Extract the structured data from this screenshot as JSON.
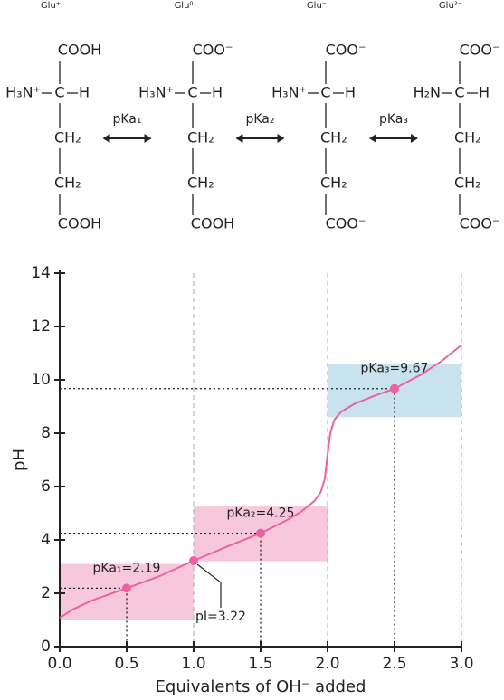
{
  "structures": [
    {
      "name": "Glu⁺",
      "top": "COOH",
      "amino": "H₃N⁺",
      "center": "C",
      "right": "H",
      "chain": [
        "CH₂",
        "CH₂"
      ],
      "bottom": "COOH"
    },
    {
      "name": "Glu⁰",
      "top": "COO⁻",
      "amino": "H₃N⁺",
      "center": "C",
      "right": "H",
      "chain": [
        "CH₂",
        "CH₂"
      ],
      "bottom": "COOH"
    },
    {
      "name": "Glu⁻",
      "top": "COO⁻",
      "amino": "H₃N⁺",
      "center": "C",
      "right": "H",
      "chain": [
        "CH₂",
        "CH₂"
      ],
      "bottom": "COO⁻"
    },
    {
      "name": "Glu²⁻",
      "top": "COO⁻",
      "amino": "H₂N",
      "center": "C",
      "right": "H",
      "chain": [
        "CH₂",
        "CH₂"
      ],
      "bottom": "COO⁻"
    }
  ],
  "equilibria": [
    "pKa₁",
    "pKa₂",
    "pKa₃"
  ],
  "chart_data": {
    "type": "line",
    "xlabel": "Equivalents of OH⁻ added",
    "ylabel": "pH",
    "xlim": [
      0,
      3
    ],
    "ylim": [
      0,
      14
    ],
    "xticks": [
      {
        "value": 0,
        "label": "0.0"
      },
      {
        "value": 0.5,
        "label": "0.5"
      },
      {
        "value": 1,
        "label": "1.0"
      },
      {
        "value": 1.5,
        "label": "1.5"
      },
      {
        "value": 2,
        "label": "2.0"
      },
      {
        "value": 2.5,
        "label": "2.5"
      },
      {
        "value": 3,
        "label": "3.0"
      }
    ],
    "yticks": [
      0,
      2,
      4,
      6,
      8,
      10,
      12,
      14
    ],
    "vgrid": [
      1,
      2,
      3
    ],
    "bands": [
      {
        "x": [
          0,
          1
        ],
        "y": [
          1.0,
          3.1
        ],
        "color": "#f7c8dc"
      },
      {
        "x": [
          1,
          2
        ],
        "y": [
          3.2,
          5.25
        ],
        "color": "#f7c8dc"
      },
      {
        "x": [
          2,
          3
        ],
        "y": [
          8.6,
          10.6
        ],
        "color": "#c8e3ee"
      }
    ],
    "series": [
      {
        "color": "#e9649e",
        "x": [
          0,
          0.1,
          0.25,
          0.5,
          0.75,
          1.0,
          1.25,
          1.5,
          1.7,
          1.8,
          1.9,
          1.95,
          1.98,
          2.0,
          2.02,
          2.05,
          2.1,
          2.2,
          2.35,
          2.5,
          2.7,
          2.85,
          3.0
        ],
        "values": [
          1.08,
          1.4,
          1.75,
          2.19,
          2.65,
          3.22,
          3.75,
          4.25,
          4.75,
          5.05,
          5.45,
          5.8,
          6.3,
          7.2,
          8.0,
          8.5,
          8.8,
          9.1,
          9.4,
          9.67,
          10.2,
          10.7,
          11.3
        ]
      }
    ],
    "annotations": [
      {
        "x": 0.5,
        "y": 2.19,
        "label": "pKa₁",
        "value_label": "=2.19"
      },
      {
        "x": 1.5,
        "y": 4.25,
        "label": "pKa₂",
        "value_label": "=4.25"
      },
      {
        "x": 2.5,
        "y": 9.67,
        "label": "pKa₃",
        "value_label": "=9.67"
      },
      {
        "x": 1.0,
        "y": 3.22,
        "label": "pI",
        "value_label": "=3.22"
      }
    ]
  }
}
